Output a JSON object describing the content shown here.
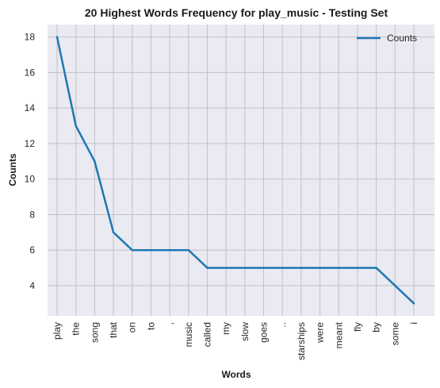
{
  "chart_data": {
    "type": "line",
    "title": "20 Highest Words Frequency for play_music - Testing Set",
    "xlabel": "Words",
    "ylabel": "Counts",
    "categories": [
      "play",
      "the",
      "song",
      "that",
      "on",
      "to",
      ",",
      "music",
      "called",
      "my",
      "slow",
      "goes",
      "..",
      "starships",
      "were",
      "meant",
      "fly",
      "by",
      "some",
      "i"
    ],
    "series": [
      {
        "name": "Counts",
        "values": [
          18,
          13,
          11,
          7,
          6,
          6,
          6,
          6,
          5,
          5,
          5,
          5,
          5,
          5,
          5,
          5,
          5,
          5,
          4,
          3
        ],
        "color": "#1f77b4"
      }
    ],
    "ylim": [
      2.3,
      18.7
    ],
    "yticks": [
      4,
      6,
      8,
      10,
      12,
      14,
      16,
      18
    ],
    "grid": true,
    "legend_position": "top-right",
    "background": "#eaeaf2",
    "grid_color": "#c0c0c6"
  }
}
